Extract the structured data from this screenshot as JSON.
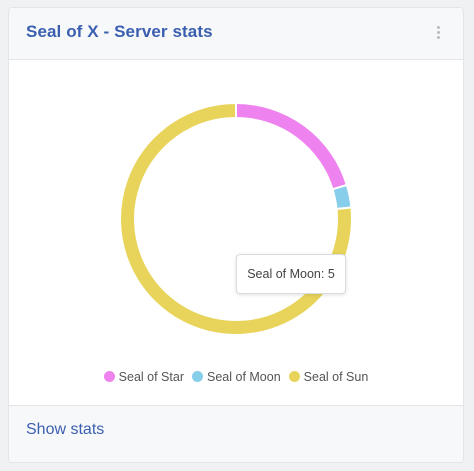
{
  "card": {
    "title": "Seal of X - Server stats",
    "menu_icon": "kebab-menu-icon",
    "footer_link": "Show stats"
  },
  "tooltip": {
    "text": "Seal of Moon: 5"
  },
  "colors": {
    "accent": "#3b5fb0",
    "star": "#ee82ee",
    "moon": "#87ceeb",
    "sun": "#e8d45a"
  },
  "chart_data": {
    "type": "pie",
    "variant": "doughnut",
    "categories": [
      "Seal of Star",
      "Seal of Moon",
      "Seal of Sun"
    ],
    "values": [
      32,
      5,
      121
    ],
    "colors": [
      "#ee82ee",
      "#87ceeb",
      "#e8d45a"
    ],
    "legend_position": "bottom"
  }
}
